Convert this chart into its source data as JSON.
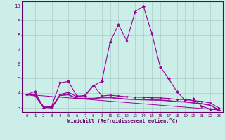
{
  "xlabel": "Windchill (Refroidissement éolien,°C)",
  "background_color": "#cceee8",
  "grid_color": "#aacccc",
  "line_color": "#990099",
  "xlim": [
    -0.5,
    23.5
  ],
  "ylim": [
    2.7,
    10.3
  ],
  "xticks": [
    0,
    1,
    2,
    3,
    4,
    5,
    6,
    7,
    8,
    9,
    10,
    11,
    12,
    13,
    14,
    15,
    16,
    17,
    18,
    19,
    20,
    21,
    22,
    23
  ],
  "yticks": [
    3,
    4,
    5,
    6,
    7,
    8,
    9,
    10
  ],
  "line1_x": [
    0,
    1,
    2,
    3,
    4,
    5,
    6,
    7,
    8,
    9,
    10,
    11,
    12,
    13,
    14,
    15,
    16,
    17,
    18,
    19,
    20,
    21,
    22,
    23
  ],
  "line1_y": [
    3.9,
    4.1,
    3.0,
    3.1,
    4.7,
    4.8,
    3.8,
    3.8,
    4.5,
    4.8,
    7.5,
    8.7,
    7.6,
    9.6,
    9.95,
    8.1,
    5.8,
    5.0,
    4.1,
    3.5,
    3.6,
    3.1,
    2.9,
    2.85
  ],
  "line2_x": [
    0,
    1,
    2,
    3,
    4,
    5,
    6,
    7,
    8,
    9,
    10,
    11,
    12,
    13,
    14,
    15,
    16,
    17,
    18,
    19,
    20,
    21,
    22,
    23
  ],
  "line2_y": [
    3.9,
    3.9,
    3.1,
    3.05,
    3.9,
    4.05,
    3.75,
    3.85,
    4.55,
    3.8,
    3.85,
    3.8,
    3.75,
    3.72,
    3.7,
    3.68,
    3.67,
    3.63,
    3.57,
    3.55,
    3.48,
    3.43,
    3.32,
    3.0
  ],
  "line3_x": [
    0,
    1,
    2,
    3,
    4,
    5,
    6,
    7,
    8,
    9,
    10,
    11,
    12,
    13,
    14,
    15,
    16,
    17,
    18,
    19,
    20,
    21,
    22,
    23
  ],
  "line3_y": [
    3.9,
    3.85,
    3.05,
    3.0,
    3.85,
    3.9,
    3.65,
    3.65,
    3.65,
    3.7,
    3.7,
    3.65,
    3.6,
    3.58,
    3.56,
    3.54,
    3.53,
    3.49,
    3.43,
    3.41,
    3.34,
    3.29,
    3.18,
    2.88
  ],
  "line4_x": [
    0,
    1,
    2,
    3,
    4,
    5,
    6,
    7,
    8,
    9,
    10,
    11,
    12,
    13,
    14,
    15,
    16,
    17,
    18,
    19,
    20,
    21,
    22,
    23
  ],
  "line4_y": [
    3.88,
    3.8,
    3.02,
    2.97,
    3.82,
    3.87,
    3.62,
    3.62,
    3.62,
    3.67,
    3.67,
    3.62,
    3.57,
    3.55,
    3.53,
    3.51,
    3.5,
    3.46,
    3.4,
    3.38,
    3.31,
    3.26,
    3.15,
    2.85
  ],
  "line5_x": [
    0,
    23
  ],
  "line5_y": [
    3.9,
    2.85
  ]
}
